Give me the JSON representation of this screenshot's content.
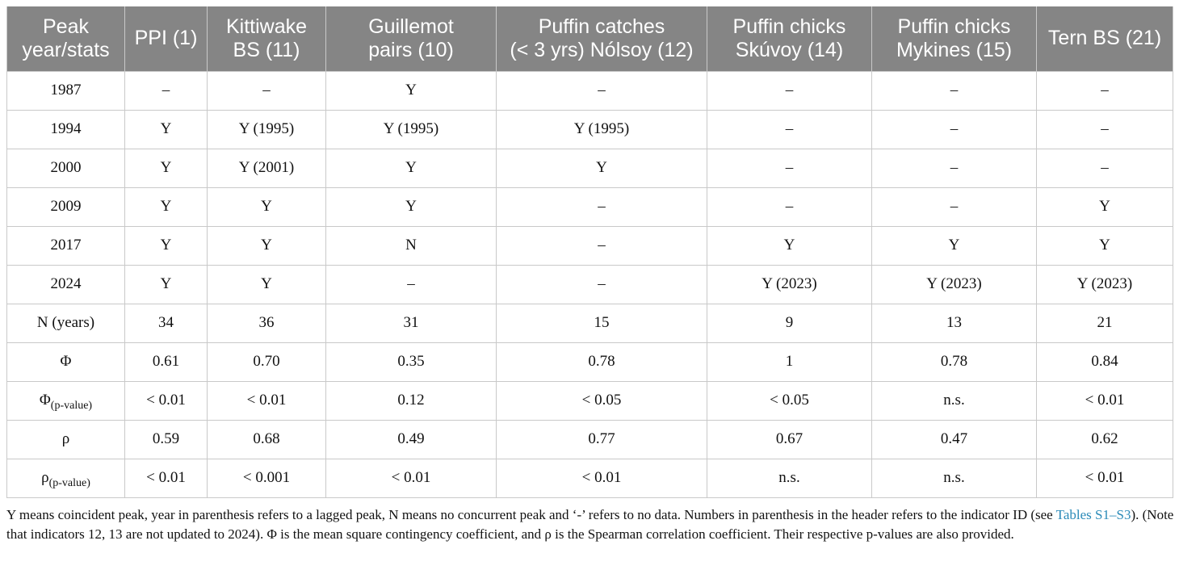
{
  "headers": [
    [
      "Peak",
      "year/stats"
    ],
    [
      "PPI (1)"
    ],
    [
      "Kittiwake",
      "BS (11)"
    ],
    [
      "Guillemot",
      "pairs (10)"
    ],
    [
      "Puffin catches",
      "(< 3 yrs) Nólsoy (12)"
    ],
    [
      "Puffin chicks",
      "Skúvoy (14)"
    ],
    [
      "Puffin chicks",
      "Mykines (15)"
    ],
    [
      "Tern BS (21)"
    ]
  ],
  "rows": [
    {
      "label": "1987",
      "cells": [
        "–",
        "–",
        "Y",
        "–",
        "–",
        "–",
        "–"
      ]
    },
    {
      "label": "1994",
      "cells": [
        "Y",
        "Y (1995)",
        "Y (1995)",
        "Y (1995)",
        "–",
        "–",
        "–"
      ]
    },
    {
      "label": "2000",
      "cells": [
        "Y",
        "Y (2001)",
        "Y",
        "Y",
        "–",
        "–",
        "–"
      ]
    },
    {
      "label": "2009",
      "cells": [
        "Y",
        "Y",
        "Y",
        "–",
        "–",
        "–",
        "Y"
      ]
    },
    {
      "label": "2017",
      "cells": [
        "Y",
        "Y",
        "N",
        "–",
        "Y",
        "Y",
        "Y"
      ]
    },
    {
      "label": "2024",
      "cells": [
        "Y",
        "Y",
        "–",
        "–",
        "Y (2023)",
        "Y (2023)",
        "Y (2023)"
      ]
    },
    {
      "label": "N (years)",
      "cells": [
        "34",
        "36",
        "31",
        "15",
        "9",
        "13",
        "21"
      ]
    },
    {
      "label": "Φ",
      "cells": [
        "0.61",
        "0.70",
        "0.35",
        "0.78",
        "1",
        "0.78",
        "0.84"
      ]
    },
    {
      "label": "Φ",
      "sub": "(p-value)",
      "cells": [
        "< 0.01",
        "< 0.01",
        "0.12",
        "< 0.05",
        "< 0.05",
        "n.s.",
        "< 0.01"
      ]
    },
    {
      "label": "ρ",
      "cells": [
        "0.59",
        "0.68",
        "0.49",
        "0.77",
        "0.67",
        "0.47",
        "0.62"
      ]
    },
    {
      "label": "ρ",
      "sub": "(p-value)",
      "cells": [
        "< 0.01",
        "< 0.001",
        "< 0.01",
        "< 0.01",
        "n.s.",
        "n.s.",
        "< 0.01"
      ]
    }
  ],
  "caption": {
    "before_link": "Y means coincident peak, year in parenthesis refers to a lagged peak, N means no concurrent peak and ‘-’ refers to no data. Numbers in parenthesis in the header refers to the indicator ID (see ",
    "link": "Tables S1–S3",
    "after_link": "). (Note that indicators 12, 13 are not updated to 2024). Φ is the mean square contingency coefficient, and ρ is the Spearman correlation coefficient. Their respective p-values are also provided."
  },
  "colors": {
    "header_bg": "#858585",
    "header_text": "#ffffff",
    "grid": "#c9c9c9",
    "link": "#2a8ab8"
  }
}
